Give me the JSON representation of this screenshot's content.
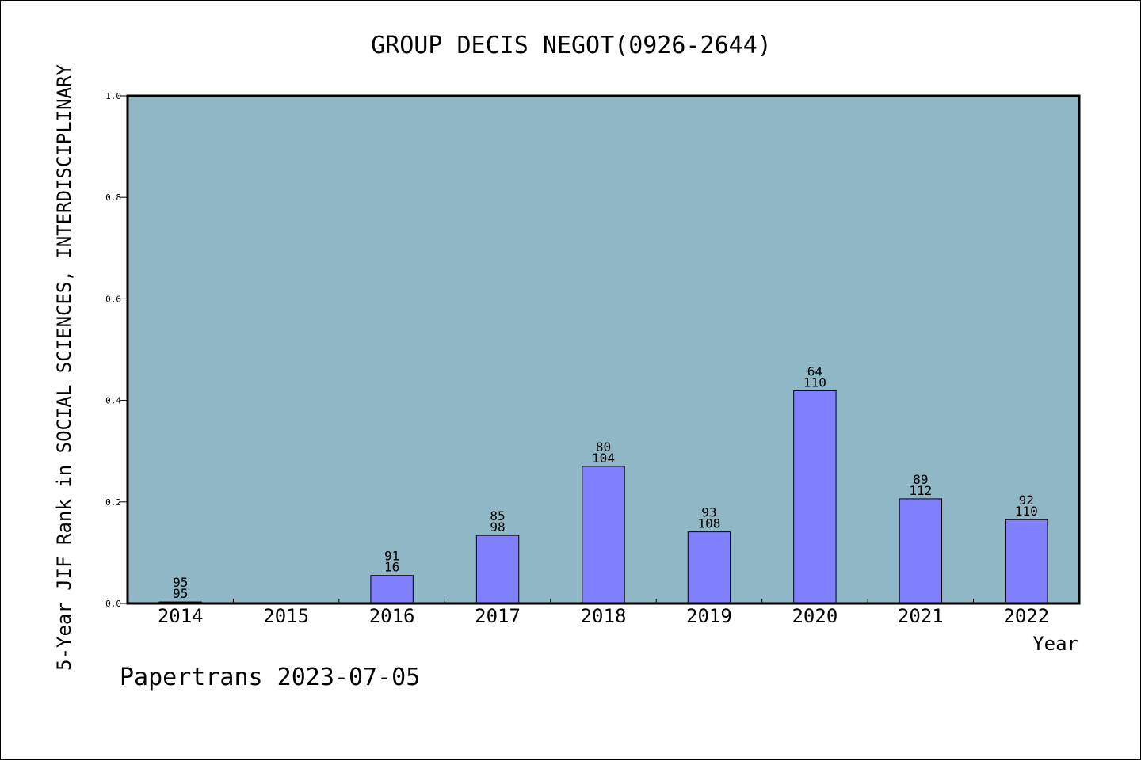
{
  "chart_data": {
    "type": "bar",
    "title": "GROUP DECIS NEGOT(0926-2644)",
    "xlabel": "Year",
    "ylabel": "5-Year JIF Rank in SOCIAL SCIENCES, INTERDISCIPLINARY",
    "categories": [
      "2014",
      "2015",
      "2016",
      "2017",
      "2018",
      "2019",
      "2020",
      "2021",
      "2022"
    ],
    "values": [
      0.003,
      null,
      0.055,
      0.134,
      0.27,
      0.141,
      0.419,
      0.206,
      0.165
    ],
    "label_top": [
      "95",
      "",
      "91",
      "85",
      "80",
      "93",
      "64",
      "89",
      "92"
    ],
    "label_bottom": [
      "95",
      "",
      "16",
      "98",
      "104",
      "108",
      "110",
      "112",
      "110"
    ],
    "ylim": [
      0,
      1.0
    ],
    "yticks": [
      "0.0",
      "0.2",
      "0.4",
      "0.6",
      "0.8",
      "1.0"
    ],
    "grid": false,
    "colors": {
      "plot_background": "#8fb7c5",
      "bar_fill": "#8080ff",
      "bar_stroke": "#000000"
    }
  },
  "footer": {
    "text": "Papertrans 2023-07-05"
  }
}
